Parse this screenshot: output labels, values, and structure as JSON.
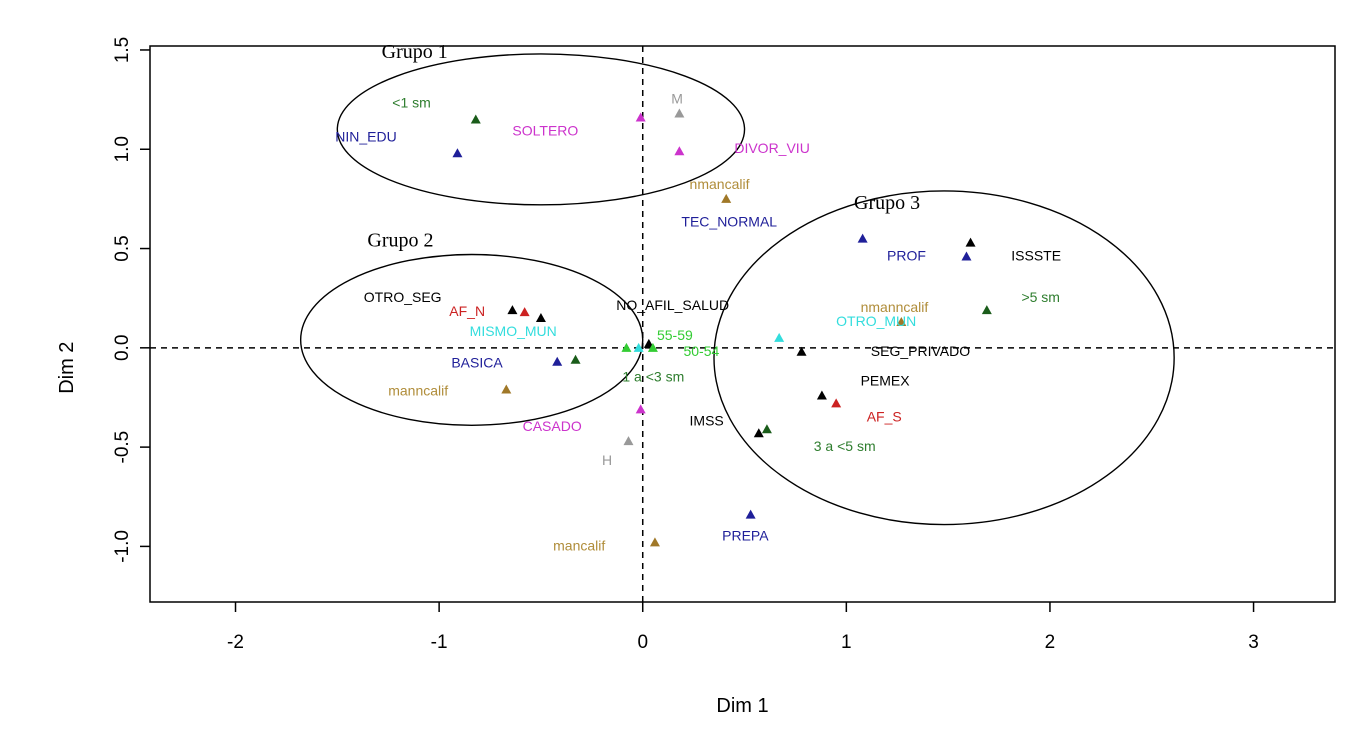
{
  "chart_data": {
    "type": "scatter",
    "xlabel": "Dim 1",
    "ylabel": "Dim 2",
    "xlim": [
      -2.42,
      3.4
    ],
    "ylim": [
      -1.28,
      1.52
    ],
    "xticks": [
      -2,
      -1,
      0,
      1,
      2,
      3
    ],
    "xtick_labels": [
      "-2",
      "-1",
      "0",
      "1",
      "2",
      "3"
    ],
    "yticks": [
      -1.0,
      -0.5,
      0.0,
      0.5,
      1.0,
      1.5
    ],
    "ytick_labels": [
      "-1.0",
      "-0.5",
      "0.0",
      "0.5",
      "1.0",
      "1.5"
    ],
    "reference_lines": {
      "x": 0,
      "y": 0,
      "style": "dashed"
    },
    "colors": {
      "education": "#1f1f99",
      "marital": "#cc33cc",
      "income": "#1a5c1a",
      "income_label": "#2e7d2e",
      "occupation": "#a07828",
      "occupation_label": "#b08d3a",
      "health": "#000000",
      "affiliation": "#cc2222",
      "municipality": "#33dddd",
      "age": "#33cc33",
      "sex": "#999999"
    },
    "groups": [
      {
        "name": "Grupo 1",
        "cx": -0.5,
        "cy": 1.1,
        "rx": 1.0,
        "ry": 0.38
      },
      {
        "name": "Grupo 2",
        "cx": -0.84,
        "cy": 0.04,
        "rx": 0.84,
        "ry": 0.43
      },
      {
        "name": "Grupo 3",
        "cx": 1.48,
        "cy": -0.05,
        "rx": 1.13,
        "ry": 0.84
      }
    ],
    "points": [
      {
        "label": "<1 sm",
        "x": -0.82,
        "y": 1.15,
        "color": "income",
        "lx": -1.23,
        "ly": 1.21,
        "anchor": "start"
      },
      {
        "label": "NIN_EDU",
        "x": -0.91,
        "y": 0.98,
        "color": "education",
        "lx": -1.51,
        "ly": 1.04,
        "anchor": "start"
      },
      {
        "label": "SOLTERO",
        "x": -0.01,
        "y": 1.16,
        "color": "marital",
        "lx": -0.64,
        "ly": 1.07,
        "anchor": "start"
      },
      {
        "label": "M",
        "x": 0.18,
        "y": 1.18,
        "color": "sex",
        "lx": 0.14,
        "ly": 1.23,
        "anchor": "start"
      },
      {
        "label": "DIVOR_VIU",
        "x": 0.18,
        "y": 0.99,
        "color": "marital",
        "lx": 0.45,
        "ly": 0.98,
        "anchor": "start"
      },
      {
        "label": "nmancalif",
        "x": 0.41,
        "y": 0.75,
        "color": "occupation",
        "lx": 0.23,
        "ly": 0.8,
        "anchor": "start"
      },
      {
        "label": "TEC_NORMAL",
        "x": 1.08,
        "y": 0.55,
        "color": "education",
        "lx": 0.19,
        "ly": 0.61,
        "anchor": "start"
      },
      {
        "label": "PROF",
        "x": 1.59,
        "y": 0.46,
        "color": "education",
        "lx": 1.2,
        "ly": 0.44,
        "anchor": "start"
      },
      {
        "label": "ISSSTE",
        "x": 1.61,
        "y": 0.53,
        "color": "health",
        "lx": 1.81,
        "ly": 0.44,
        "anchor": "start"
      },
      {
        "label": ">5 sm",
        "x": 1.69,
        "y": 0.19,
        "color": "income",
        "lx": 1.86,
        "ly": 0.23,
        "anchor": "start"
      },
      {
        "label": "nmanncalif",
        "x": 1.27,
        "y": 0.13,
        "color": "occupation",
        "lx": 1.07,
        "ly": 0.18,
        "anchor": "start"
      },
      {
        "label": "OTRO_MUN",
        "x": 0.67,
        "y": 0.05,
        "color": "municipality",
        "lx": 0.95,
        "ly": 0.11,
        "anchor": "start"
      },
      {
        "label": "SEG_PRIVADO",
        "x": 0.78,
        "y": -0.02,
        "color": "health",
        "lx": 1.12,
        "ly": -0.04,
        "anchor": "start"
      },
      {
        "label": "PEMEX",
        "x": 0.88,
        "y": -0.24,
        "color": "health",
        "lx": 1.07,
        "ly": -0.19,
        "anchor": "start"
      },
      {
        "label": "AF_S",
        "x": 0.95,
        "y": -0.28,
        "color": "affiliation",
        "lx": 1.1,
        "ly": -0.37,
        "anchor": "start"
      },
      {
        "label": "IMSS",
        "x": 0.57,
        "y": -0.43,
        "color": "health",
        "lx": 0.23,
        "ly": -0.39,
        "anchor": "start"
      },
      {
        "label": "3 a <5 sm",
        "x": 0.61,
        "y": -0.41,
        "color": "income",
        "lx": 0.84,
        "ly": -0.52,
        "anchor": "start"
      },
      {
        "label": "PREPA",
        "x": 0.53,
        "y": -0.84,
        "color": "education",
        "lx": 0.39,
        "ly": -0.97,
        "anchor": "start"
      },
      {
        "label": "mancalif",
        "x": 0.06,
        "y": -0.98,
        "color": "occupation",
        "lx": -0.44,
        "ly": -1.02,
        "anchor": "start"
      },
      {
        "label": "H",
        "x": -0.07,
        "y": -0.47,
        "color": "sex",
        "lx": -0.2,
        "ly": -0.59,
        "anchor": "start"
      },
      {
        "label": "CASADO",
        "x": -0.01,
        "y": -0.31,
        "color": "marital",
        "lx": -0.59,
        "ly": -0.42,
        "anchor": "start"
      },
      {
        "label": "NO_AFIL_SALUD",
        "x": 0.03,
        "y": 0.02,
        "color": "health",
        "lx": -0.13,
        "ly": 0.19,
        "anchor": "start"
      },
      {
        "label": "55-59",
        "x": -0.08,
        "y": 0.0,
        "color": "age",
        "lx": 0.07,
        "ly": 0.04,
        "anchor": "start"
      },
      {
        "label": "50-54",
        "x": 0.05,
        "y": 0.0,
        "color": "age",
        "lx": 0.2,
        "ly": -0.04,
        "anchor": "start"
      },
      {
        "label": "1 a <3 sm",
        "x": -0.33,
        "y": -0.06,
        "color": "income",
        "lx": -0.1,
        "ly": -0.17,
        "anchor": "start"
      },
      {
        "label": "OTRO_SEG",
        "x": -0.64,
        "y": 0.19,
        "color": "health",
        "lx": -1.37,
        "ly": 0.23,
        "anchor": "start"
      },
      {
        "label": "AF_N",
        "x": -0.58,
        "y": 0.18,
        "color": "affiliation",
        "lx": -0.95,
        "ly": 0.16,
        "anchor": "start"
      },
      {
        "label": "",
        "x": -0.5,
        "y": 0.15,
        "color": "health"
      },
      {
        "label": "MISMO_MUN",
        "x": -0.02,
        "y": 0.0,
        "color": "municipality",
        "lx": -0.85,
        "ly": 0.06,
        "anchor": "start"
      },
      {
        "label": "BASICA",
        "x": -0.42,
        "y": -0.07,
        "color": "education",
        "lx": -0.94,
        "ly": -0.1,
        "anchor": "start"
      },
      {
        "label": "manncalif",
        "x": -0.67,
        "y": -0.21,
        "color": "occupation",
        "lx": -1.25,
        "ly": -0.24,
        "anchor": "start"
      }
    ]
  }
}
